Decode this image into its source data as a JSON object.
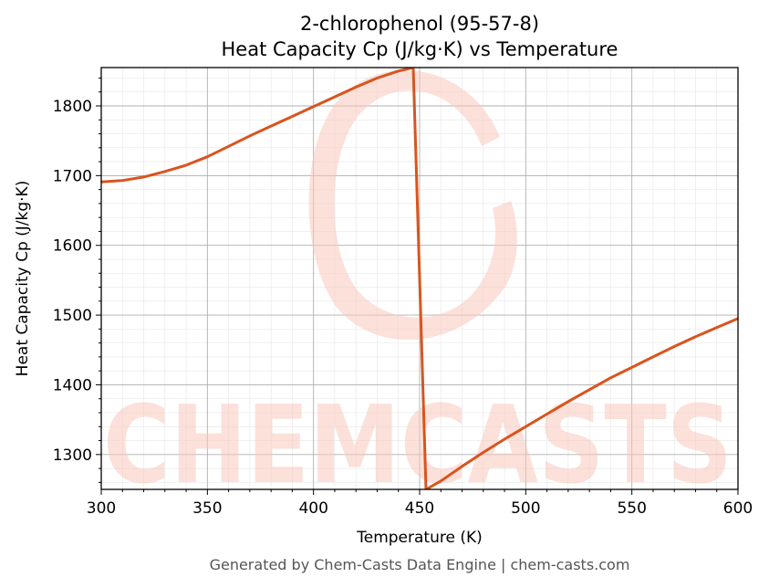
{
  "chart_data": {
    "type": "line",
    "title": "2-chlorophenol (95-57-8)",
    "subtitle": "Heat Capacity Cp (J/kg·K) vs Temperature",
    "xlabel": "Temperature (K)",
    "ylabel": "Heat Capacity Cp (J/kg·K)",
    "xlim": [
      300,
      600
    ],
    "ylim": [
      1250,
      1855
    ],
    "xticks": [
      300,
      350,
      400,
      450,
      500,
      550,
      600
    ],
    "yticks": [
      1300,
      1400,
      1500,
      1600,
      1700,
      1800
    ],
    "grid": true,
    "minor_grid": true,
    "line_color": "#d9541e",
    "series": [
      {
        "x": [
          300,
          310,
          320,
          330,
          340,
          350,
          360,
          370,
          380,
          390,
          400,
          410,
          420,
          430,
          440,
          447,
          453,
          460,
          470,
          480,
          490,
          500,
          510,
          520,
          530,
          540,
          550,
          560,
          570,
          580,
          590,
          600
        ],
        "y": [
          1691,
          1693,
          1698,
          1706,
          1715,
          1727,
          1742,
          1757,
          1771,
          1785,
          1799,
          1813,
          1827,
          1840,
          1850,
          1855,
          1250,
          1262,
          1283,
          1303,
          1322,
          1340,
          1358,
          1376,
          1393,
          1410,
          1425,
          1440,
          1455,
          1469,
          1482,
          1495
        ]
      }
    ]
  },
  "watermark": {
    "text": "CHEMCASTS",
    "color": "#f9c9bd"
  },
  "footer": "Generated by Chem-Casts Data Engine | chem-casts.com"
}
